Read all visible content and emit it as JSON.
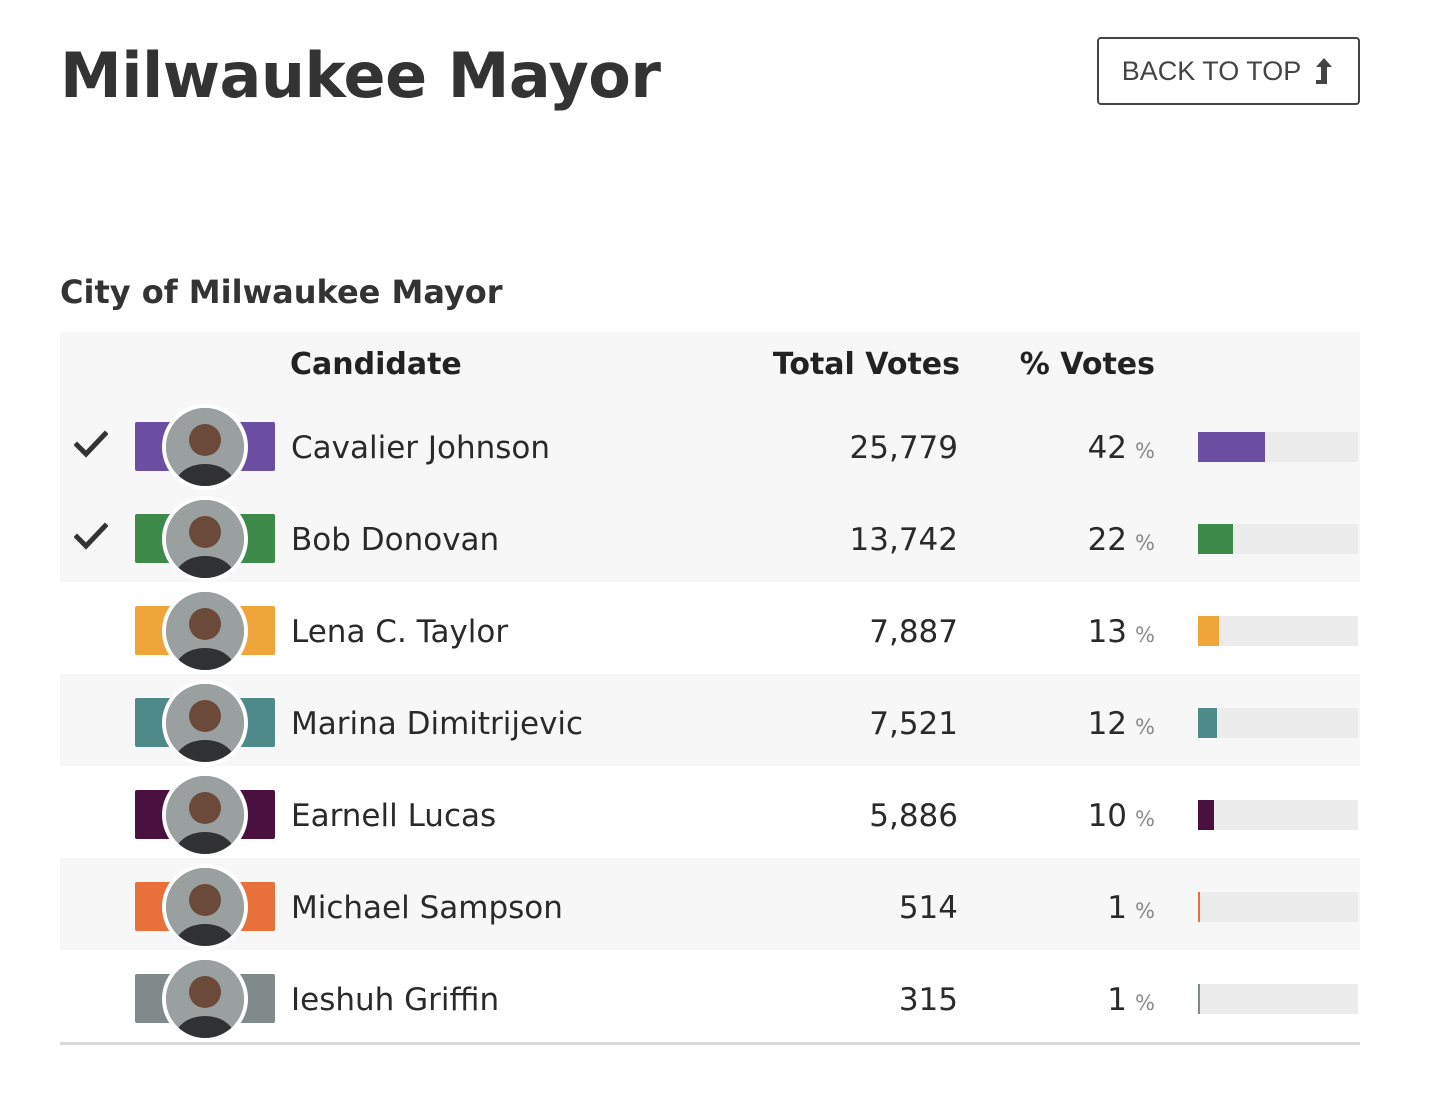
{
  "page": {
    "title": "Milwaukee Mayor",
    "back_to_top": "BACK TO TOP"
  },
  "race": {
    "title": "City of Milwaukee Mayor",
    "headers": {
      "candidate": "Candidate",
      "total_votes": "Total Votes",
      "pct_votes": "% Votes"
    },
    "pct_sign": "%",
    "candidates": [
      {
        "name": "Cavalier Johnson",
        "votes": "25,779",
        "pct": "42",
        "pct_fraction": 0.42,
        "advanced": true,
        "color": "#6b4fa3",
        "avatar_icon": "candidate-photo"
      },
      {
        "name": "Bob Donovan",
        "votes": "13,742",
        "pct": "22",
        "pct_fraction": 0.22,
        "advanced": true,
        "color": "#3d8a4a",
        "avatar_icon": "candidate-photo"
      },
      {
        "name": "Lena C. Taylor",
        "votes": "7,887",
        "pct": "13",
        "pct_fraction": 0.13,
        "advanced": false,
        "color": "#f0a53a",
        "avatar_icon": "candidate-photo"
      },
      {
        "name": "Marina Dimitrijevic",
        "votes": "7,521",
        "pct": "12",
        "pct_fraction": 0.12,
        "advanced": false,
        "color": "#4e8b88",
        "avatar_icon": "candidate-photo"
      },
      {
        "name": "Earnell Lucas",
        "votes": "5,886",
        "pct": "10",
        "pct_fraction": 0.1,
        "advanced": false,
        "color": "#4a1040",
        "avatar_icon": "candidate-photo"
      },
      {
        "name": "Michael Sampson",
        "votes": "514",
        "pct": "1",
        "pct_fraction": 0.01,
        "advanced": false,
        "color": "#e8703a",
        "avatar_icon": "candidate-photo"
      },
      {
        "name": "Ieshuh Griffin",
        "votes": "315",
        "pct": "1",
        "pct_fraction": 0.005,
        "advanced": false,
        "color": "#808a8a",
        "avatar_icon": "candidate-photo"
      }
    ]
  }
}
